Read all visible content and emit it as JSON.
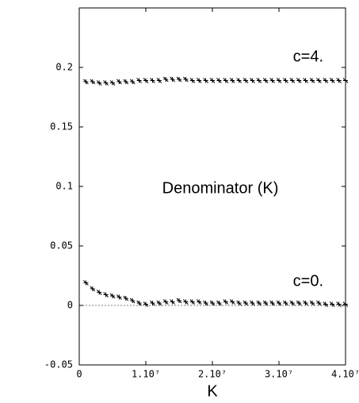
{
  "chart_data": {
    "type": "scatter",
    "title": "Denominator (K)",
    "x_label": "K",
    "annotations": [
      "c=4.",
      "c=0."
    ],
    "xlim": [
      0,
      40000000
    ],
    "xticks": [
      0,
      {
        "value": 10000000,
        "label": "1.10⁷"
      },
      {
        "value": 20000000,
        "label": "2.10⁷"
      },
      {
        "value": 30000000,
        "label": "3.10⁷"
      },
      {
        "value": 40000000,
        "label": "4.10⁷"
      }
    ],
    "ylim": [
      -0.05,
      0.25
    ],
    "yticks": [
      -0.05,
      0,
      0.05,
      0.1,
      0.15,
      0.2
    ],
    "zero_line": true,
    "x": [
      1000000,
      2000000,
      3000000,
      4000000,
      5000000,
      6000000,
      7000000,
      8000000,
      9000000,
      10000000,
      11000000,
      12000000,
      13000000,
      14000000,
      15000000,
      16000000,
      17000000,
      18000000,
      19000000,
      20000000,
      21000000,
      22000000,
      23000000,
      24000000,
      25000000,
      26000000,
      27000000,
      28000000,
      29000000,
      30000000,
      31000000,
      32000000,
      33000000,
      34000000,
      35000000,
      36000000,
      37000000,
      38000000,
      39000000,
      40000000
    ],
    "series": [
      {
        "color": "#000000",
        "values": [
          0.188,
          0.188,
          0.187,
          0.187,
          0.187,
          0.188,
          0.188,
          0.188,
          0.189,
          0.189,
          0.189,
          0.189,
          0.19,
          0.19,
          0.19,
          0.19,
          0.189,
          0.189,
          0.189,
          0.189,
          0.189,
          0.189,
          0.189,
          0.189,
          0.189,
          0.189,
          0.189,
          0.189,
          0.189,
          0.189,
          0.189,
          0.189,
          0.189,
          0.189,
          0.189,
          0.189,
          0.189,
          0.189,
          0.189,
          0.189
        ]
      },
      {
        "color": "#000000",
        "values": [
          0.019,
          0.014,
          0.011,
          0.009,
          0.008,
          0.007,
          0.006,
          0.004,
          0.002,
          0.001,
          0.002,
          0.002,
          0.003,
          0.003,
          0.004,
          0.003,
          0.003,
          0.003,
          0.002,
          0.002,
          0.002,
          0.003,
          0.003,
          0.002,
          0.002,
          0.002,
          0.002,
          0.002,
          0.002,
          0.002,
          0.002,
          0.002,
          0.002,
          0.002,
          0.002,
          0.002,
          0.001,
          0.001,
          0.001,
          0.001
        ]
      }
    ]
  }
}
